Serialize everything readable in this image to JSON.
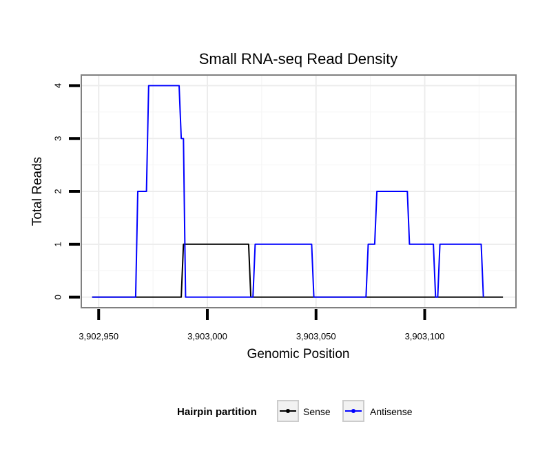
{
  "chart_data": {
    "type": "line",
    "title": "Small RNA-seq Read Density",
    "xlabel": "Genomic Position",
    "ylabel": "Total Reads",
    "xlim": [
      3902942,
      3903142
    ],
    "ylim": [
      -0.2,
      4.2
    ],
    "x_ticks": [
      3902950,
      3903000,
      3903050,
      3903100
    ],
    "x_tick_labels": [
      "3,902,950",
      "3,903,000",
      "3,903,050",
      "3,903,100"
    ],
    "y_ticks": [
      0,
      1,
      2,
      3,
      4
    ],
    "y_tick_labels": [
      "0",
      "1",
      "2",
      "3",
      "4"
    ],
    "grid": true,
    "legend": {
      "title": "Hairpin partition",
      "position": "bottom",
      "entries": [
        "Sense",
        "Antisense"
      ]
    },
    "series": [
      {
        "name": "Sense",
        "color": "#000000",
        "x": [
          3902947,
          3902988,
          3902989,
          3903019,
          3903020,
          3903136
        ],
        "y": [
          0,
          0,
          1,
          1,
          0,
          0
        ]
      },
      {
        "name": "Antisense",
        "color": "#0000ff",
        "x": [
          3902947,
          3902967,
          3902968,
          3902972,
          3902973,
          3902987,
          3902988,
          3902989,
          3902990,
          3902991,
          3903021,
          3903022,
          3903048,
          3903049,
          3903073,
          3903074,
          3903077,
          3903078,
          3903092,
          3903093,
          3903104,
          3903105,
          3903106,
          3903107,
          3903126,
          3903127
        ],
        "y": [
          0,
          0,
          2,
          2,
          4,
          4,
          3,
          3,
          0,
          0,
          0,
          1,
          1,
          0,
          0,
          1,
          1,
          2,
          2,
          1,
          1,
          0,
          0,
          1,
          1,
          0
        ]
      }
    ]
  }
}
